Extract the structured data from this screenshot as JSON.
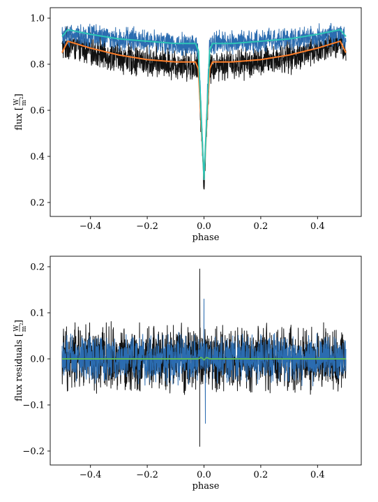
{
  "figure": {
    "background": "#ffffff"
  },
  "chart_data": [
    {
      "type": "line",
      "xlabel": "phase",
      "ylabel_text": "flux",
      "ylabel_unit_num": "W",
      "ylabel_unit_den": "m",
      "ylabel_unit_exp": "2",
      "xlim": [
        -0.5,
        0.5
      ],
      "ylim": [
        0.2,
        1.0
      ],
      "xticks": [
        -0.4,
        -0.2,
        0.0,
        0.2,
        0.4
      ],
      "xtick_labels": [
        "−0.4",
        "−0.2",
        "0.0",
        "0.2",
        "0.4"
      ],
      "yticks": [
        0.2,
        0.4,
        0.6,
        0.8,
        1.0
      ],
      "ytick_labels": [
        "0.2",
        "0.4",
        "0.6",
        "0.8",
        "1.0"
      ],
      "grid": false,
      "series": [
        {
          "key": "obs_black",
          "color": "#111111",
          "kind": "noisy",
          "x": [
            -0.5,
            -0.48,
            -0.4,
            -0.3,
            -0.2,
            -0.1,
            -0.05,
            -0.02,
            -0.01,
            0.0,
            0.01,
            0.02,
            0.05,
            0.1,
            0.2,
            0.3,
            0.4,
            0.48,
            0.5
          ],
          "y": [
            0.87,
            0.89,
            0.86,
            0.83,
            0.81,
            0.8,
            0.8,
            0.78,
            0.55,
            0.27,
            0.55,
            0.78,
            0.8,
            0.8,
            0.81,
            0.83,
            0.86,
            0.89,
            0.86
          ],
          "noise": 0.08
        },
        {
          "key": "obs_blue",
          "color": "#2b6cb0",
          "kind": "noisy",
          "x": [
            -0.5,
            -0.48,
            -0.4,
            -0.3,
            -0.2,
            -0.1,
            -0.05,
            -0.02,
            -0.01,
            0.0,
            0.01,
            0.02,
            0.05,
            0.1,
            0.2,
            0.3,
            0.4,
            0.48,
            0.5
          ],
          "y": [
            0.92,
            0.93,
            0.92,
            0.91,
            0.9,
            0.89,
            0.89,
            0.87,
            0.6,
            0.28,
            0.6,
            0.88,
            0.89,
            0.89,
            0.9,
            0.91,
            0.92,
            0.93,
            0.91
          ],
          "noise": 0.06
        },
        {
          "key": "model_orange",
          "color": "#ff7f2a",
          "kind": "line",
          "x": [
            -0.5,
            -0.48,
            -0.4,
            -0.3,
            -0.2,
            -0.1,
            -0.03,
            -0.02,
            -0.01,
            0.0,
            0.01,
            0.02,
            0.03,
            0.1,
            0.2,
            0.3,
            0.4,
            0.48,
            0.5
          ],
          "y": [
            0.85,
            0.9,
            0.87,
            0.84,
            0.82,
            0.81,
            0.81,
            0.78,
            0.55,
            0.3,
            0.55,
            0.78,
            0.81,
            0.81,
            0.82,
            0.84,
            0.87,
            0.9,
            0.85
          ]
        },
        {
          "key": "model_teal",
          "color": "#2ec4b6",
          "kind": "line",
          "x": [
            -0.5,
            -0.48,
            -0.4,
            -0.3,
            -0.2,
            -0.1,
            -0.03,
            -0.02,
            -0.01,
            0.0,
            0.01,
            0.02,
            0.03,
            0.1,
            0.2,
            0.3,
            0.4,
            0.48,
            0.5
          ],
          "y": [
            0.92,
            0.95,
            0.93,
            0.91,
            0.9,
            0.89,
            0.89,
            0.86,
            0.58,
            0.3,
            0.58,
            0.86,
            0.89,
            0.89,
            0.9,
            0.91,
            0.93,
            0.95,
            0.92
          ]
        }
      ]
    },
    {
      "type": "line",
      "xlabel": "phase",
      "ylabel_text": "flux residuals",
      "ylabel_unit_num": "W",
      "ylabel_unit_den": "m",
      "ylabel_unit_exp": "2",
      "xlim": [
        -0.5,
        0.5
      ],
      "ylim": [
        -0.2,
        0.2
      ],
      "xticks": [
        -0.4,
        -0.2,
        0.0,
        0.2,
        0.4
      ],
      "xtick_labels": [
        "−0.4",
        "−0.2",
        "0.0",
        "0.2",
        "0.4"
      ],
      "yticks": [
        -0.2,
        -0.1,
        0.0,
        0.1,
        0.2
      ],
      "ytick_labels": [
        "−0.2",
        "−0.1",
        "0.0",
        "0.1",
        "0.2"
      ],
      "grid": false,
      "series": [
        {
          "key": "resid_black",
          "color": "#111111",
          "kind": "noisy",
          "x": [
            -0.5,
            0.5
          ],
          "y": [
            0.0,
            0.0
          ],
          "noise": 0.085,
          "spikes": [
            {
              "x": -0.015,
              "y": 0.195
            },
            {
              "x": -0.015,
              "y": -0.19
            }
          ]
        },
        {
          "key": "resid_blue",
          "color": "#2b6cb0",
          "kind": "noisy",
          "x": [
            -0.5,
            0.5
          ],
          "y": [
            0.0,
            0.0
          ],
          "noise": 0.06,
          "spikes": [
            {
              "x": 0.0,
              "y": 0.13
            },
            {
              "x": 0.005,
              "y": -0.14
            }
          ]
        },
        {
          "key": "resid_model",
          "color": "#5cb85c",
          "kind": "line",
          "x": [
            -0.5,
            -0.02,
            -0.01,
            0.0,
            0.01,
            0.02,
            0.5
          ],
          "y": [
            0.0,
            0.0,
            0.003,
            -0.002,
            0.003,
            0.0,
            0.0
          ]
        }
      ]
    }
  ]
}
